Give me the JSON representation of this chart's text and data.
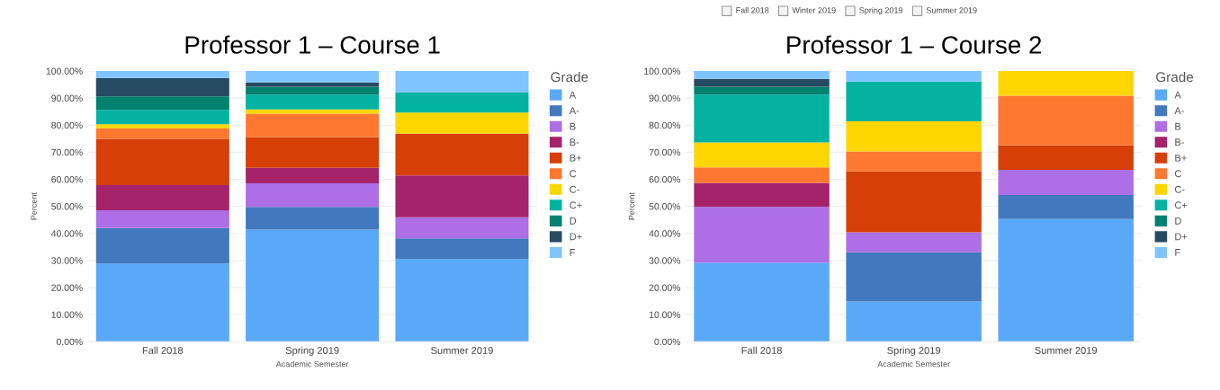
{
  "chart_data": [
    {
      "type": "bar",
      "stacked": true,
      "title": "Professor 1 – Course 1",
      "xlabel": "Academic Semester",
      "ylabel": "Percent",
      "legend_title": "Grade",
      "legend": "right",
      "grid": "y",
      "categories": [
        "Fall 2018",
        "Spring 2019",
        "Summer 2019"
      ],
      "ylim": [
        0,
        100
      ],
      "yticks": [
        {
          "value": 0,
          "label": "0.00%"
        },
        {
          "value": 10,
          "label": "10.00%"
        },
        {
          "value": 20,
          "label": "20.00%"
        },
        {
          "value": 30,
          "label": "30.00%"
        },
        {
          "value": 40,
          "label": "40.00%"
        },
        {
          "value": 50,
          "label": "50.00%"
        },
        {
          "value": 60,
          "label": "60.00%"
        },
        {
          "value": 70,
          "label": "70.00%"
        },
        {
          "value": 80,
          "label": "80.00%"
        },
        {
          "value": 90,
          "label": "90.00%"
        },
        {
          "value": 100,
          "label": "100.00%"
        }
      ],
      "series": [
        {
          "name": "A",
          "color": "#5aa9f8",
          "values": [
            28.9,
            41.4,
            30.5
          ]
        },
        {
          "name": "A-",
          "color": "#4278be",
          "values": [
            13.1,
            8.4,
            7.7
          ]
        },
        {
          "name": "B",
          "color": "#ad6ee6",
          "values": [
            6.5,
            8.7,
            7.8
          ]
        },
        {
          "name": "B-",
          "color": "#a4236b",
          "values": [
            9.3,
            5.7,
            15.4
          ]
        },
        {
          "name": "B+",
          "color": "#d63f07",
          "values": [
            17.1,
            11.4,
            15.4
          ]
        },
        {
          "name": "C",
          "color": "#ff7830",
          "values": [
            3.9,
            8.6,
            0
          ]
        },
        {
          "name": "C-",
          "color": "#fdd600",
          "values": [
            1.5,
            1.6,
            7.8
          ]
        },
        {
          "name": "C+",
          "color": "#03b2a0",
          "values": [
            5.3,
            5.5,
            7.6
          ]
        },
        {
          "name": "D",
          "color": "#028170",
          "values": [
            5.0,
            2.9,
            0
          ]
        },
        {
          "name": "D+",
          "color": "#254b62",
          "values": [
            6.8,
            1.6,
            0
          ]
        },
        {
          "name": "F",
          "color": "#80c4ff",
          "values": [
            2.6,
            4.2,
            7.8
          ]
        }
      ]
    },
    {
      "type": "bar",
      "stacked": true,
      "title": "Professor 1 – Course 2",
      "xlabel": "Academic Semester",
      "ylabel": "Percent",
      "legend_title": "Grade",
      "legend": "right",
      "grid": "y",
      "annotations": [
        "Fall 2018",
        "Winter 2019",
        "Spring 2019",
        "Summer 2019"
      ],
      "categories": [
        "Fall 2018",
        "Spring 2019",
        "Summer 2019"
      ],
      "ylim": [
        0,
        100
      ],
      "yticks": [
        {
          "value": 0,
          "label": "0.00%"
        },
        {
          "value": 10,
          "label": "10.00%"
        },
        {
          "value": 20,
          "label": "20.00%"
        },
        {
          "value": 30,
          "label": "30.00%"
        },
        {
          "value": 40,
          "label": "40.00%"
        },
        {
          "value": 50,
          "label": "50.00%"
        },
        {
          "value": 60,
          "label": "60.00%"
        },
        {
          "value": 70,
          "label": "70.00%"
        },
        {
          "value": 80,
          "label": "80.00%"
        },
        {
          "value": 90,
          "label": "90.00%"
        },
        {
          "value": 100,
          "label": "100.00%"
        }
      ],
      "series": [
        {
          "name": "A",
          "color": "#5aa9f8",
          "values": [
            29.2,
            14.8,
            45.3
          ]
        },
        {
          "name": "A-",
          "color": "#4278be",
          "values": [
            0,
            18.2,
            8.9
          ]
        },
        {
          "name": "B",
          "color": "#ad6ee6",
          "values": [
            20.6,
            7.4,
            9.3
          ]
        },
        {
          "name": "B-",
          "color": "#a4236b",
          "values": [
            8.9,
            0,
            0
          ]
        },
        {
          "name": "B+",
          "color": "#d63f07",
          "values": [
            0,
            22.6,
            9.1
          ]
        },
        {
          "name": "C",
          "color": "#ff7830",
          "values": [
            5.7,
            7.3,
            18.3
          ]
        },
        {
          "name": "C-",
          "color": "#fdd600",
          "values": [
            9.2,
            11.1,
            9.1
          ]
        },
        {
          "name": "C+",
          "color": "#03b2a0",
          "values": [
            17.7,
            14.7,
            0
          ]
        },
        {
          "name": "D",
          "color": "#028170",
          "values": [
            2.9,
            0,
            0
          ]
        },
        {
          "name": "D+",
          "color": "#254b62",
          "values": [
            2.9,
            0,
            0
          ]
        },
        {
          "name": "F",
          "color": "#80c4ff",
          "values": [
            2.9,
            3.9,
            0
          ]
        }
      ]
    }
  ]
}
